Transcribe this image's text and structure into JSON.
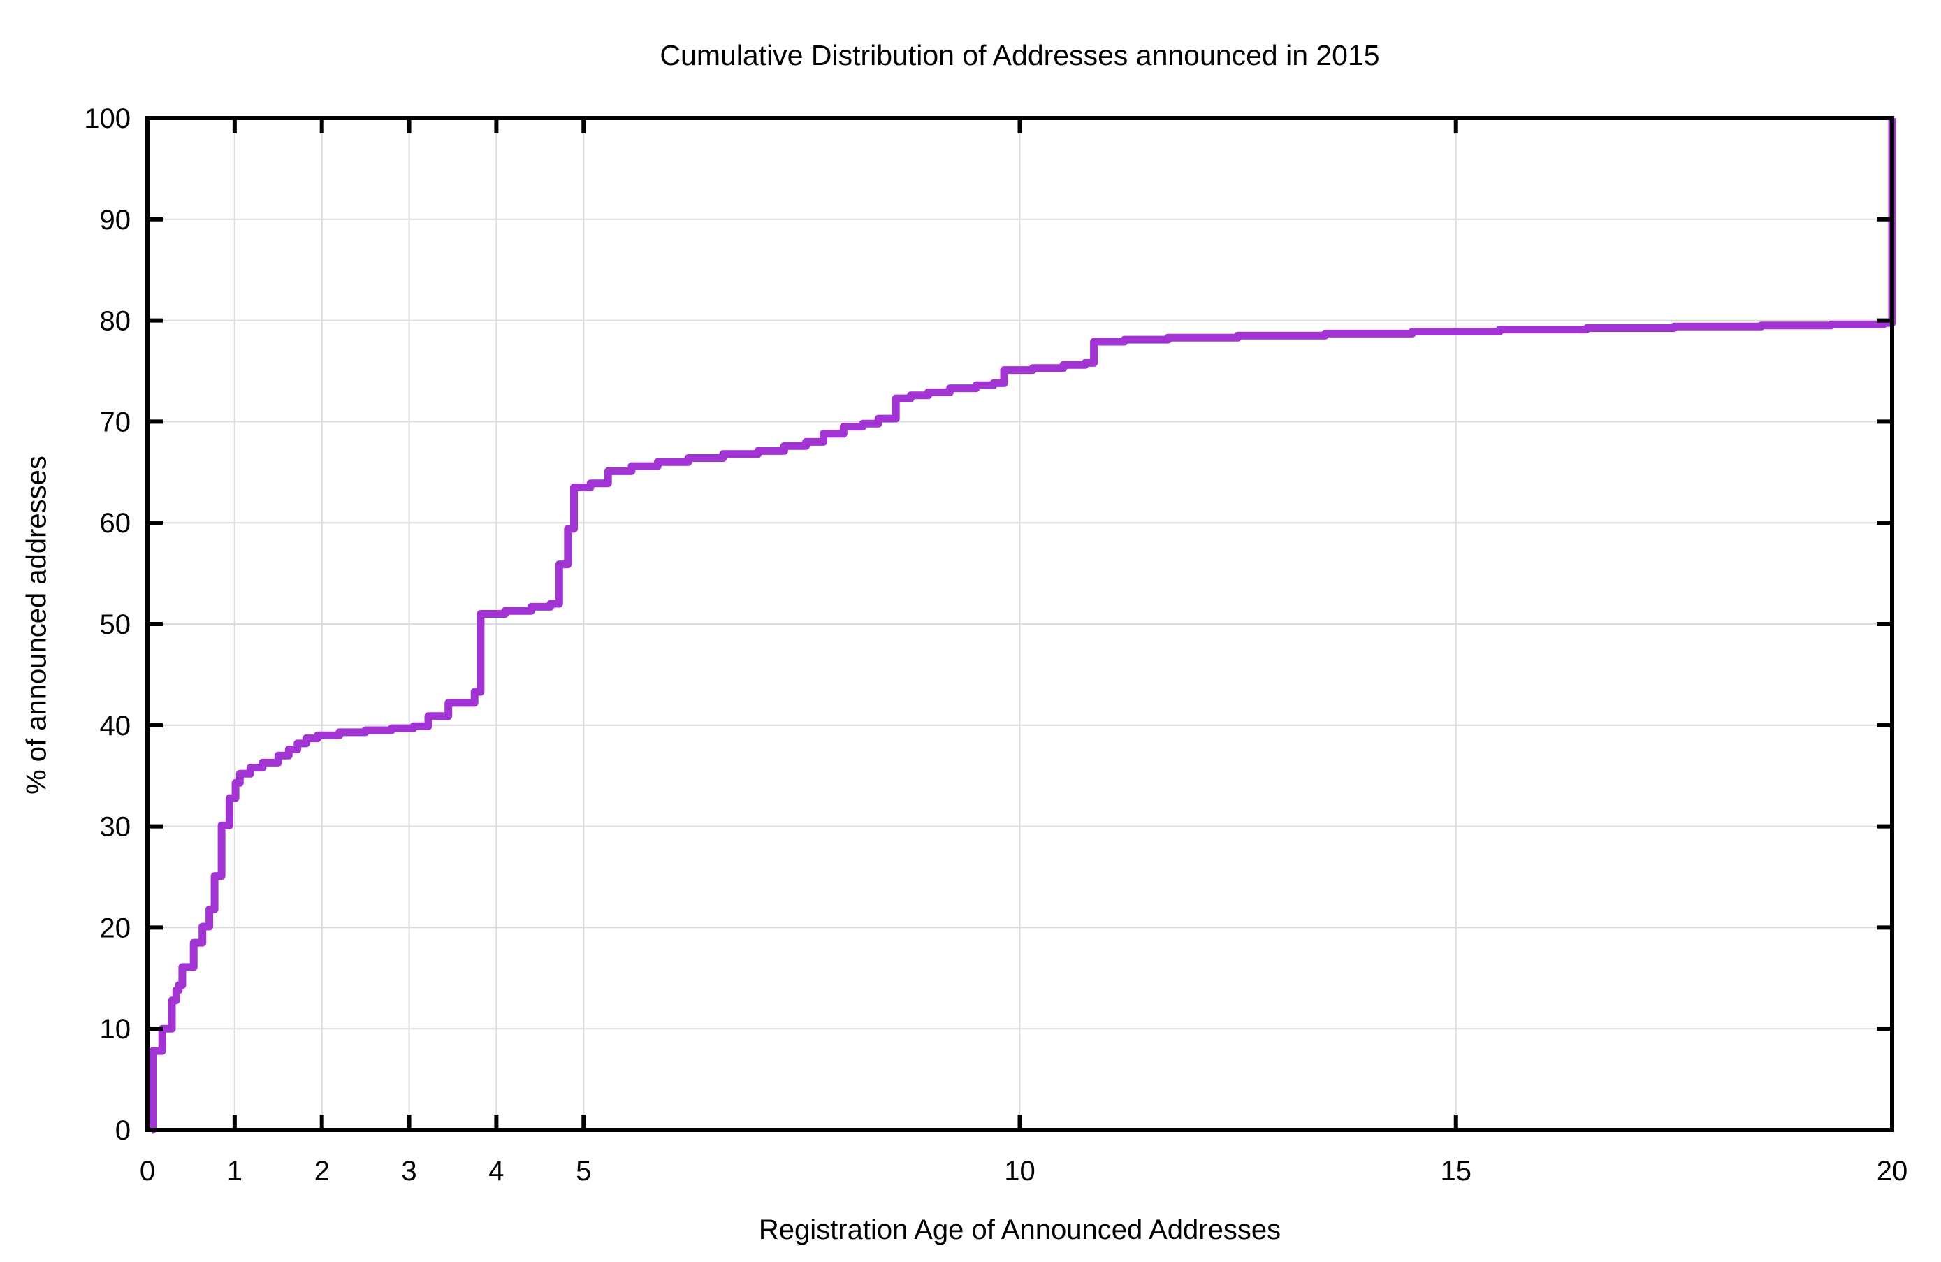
{
  "chart_data": {
    "type": "line",
    "subtype": "cdf-step",
    "title": "Cumulative Distribution of Addresses announced in 2015",
    "xlabel": "Registration Age of Announced Addresses",
    "ylabel": "% of announced addresses",
    "xlim": [
      0,
      20
    ],
    "ylim": [
      0,
      100
    ],
    "grid": true,
    "legend": "none",
    "x_ticks": [
      0,
      1,
      2,
      3,
      4,
      5,
      10,
      15,
      20
    ],
    "x_tick_labels": [
      "0",
      "1",
      "2",
      "3",
      "4",
      "5",
      "10",
      "15",
      "20"
    ],
    "y_ticks": [
      0,
      10,
      20,
      30,
      40,
      50,
      60,
      70,
      80,
      90,
      100
    ],
    "y_tick_labels": [
      "0",
      "10",
      "20",
      "30",
      "40",
      "50",
      "60",
      "70",
      "80",
      "90",
      "100"
    ],
    "line_color": "#a234d4",
    "line_width": 11,
    "axis_color": "#000000",
    "grid_color": "#dcdcdc",
    "background_color": "#ffffff",
    "points": [
      [
        0.05,
        0.0
      ],
      [
        0.06,
        7.8
      ],
      [
        0.17,
        10.0
      ],
      [
        0.28,
        12.8
      ],
      [
        0.33,
        13.8
      ],
      [
        0.36,
        14.3
      ],
      [
        0.4,
        16.1
      ],
      [
        0.53,
        18.5
      ],
      [
        0.63,
        20.1
      ],
      [
        0.71,
        21.8
      ],
      [
        0.77,
        25.1
      ],
      [
        0.85,
        30.1
      ],
      [
        0.94,
        32.8
      ],
      [
        1.01,
        34.3
      ],
      [
        1.06,
        35.2
      ],
      [
        1.18,
        35.8
      ],
      [
        1.32,
        36.3
      ],
      [
        1.5,
        37.0
      ],
      [
        1.62,
        37.6
      ],
      [
        1.72,
        38.2
      ],
      [
        1.82,
        38.7
      ],
      [
        1.95,
        39.0
      ],
      [
        2.2,
        39.3
      ],
      [
        2.5,
        39.5
      ],
      [
        2.8,
        39.7
      ],
      [
        3.05,
        39.9
      ],
      [
        3.22,
        40.9
      ],
      [
        3.45,
        42.2
      ],
      [
        3.75,
        43.3
      ],
      [
        3.82,
        51.0
      ],
      [
        4.1,
        51.3
      ],
      [
        4.4,
        51.7
      ],
      [
        4.62,
        52.0
      ],
      [
        4.72,
        55.9
      ],
      [
        4.82,
        59.4
      ],
      [
        4.89,
        63.5
      ],
      [
        5.08,
        63.9
      ],
      [
        5.28,
        65.1
      ],
      [
        5.55,
        65.6
      ],
      [
        5.85,
        66.0
      ],
      [
        6.2,
        66.4
      ],
      [
        6.6,
        66.8
      ],
      [
        7.0,
        67.1
      ],
      [
        7.3,
        67.6
      ],
      [
        7.55,
        68.0
      ],
      [
        7.75,
        68.8
      ],
      [
        7.98,
        69.5
      ],
      [
        8.2,
        69.8
      ],
      [
        8.38,
        70.3
      ],
      [
        8.58,
        72.3
      ],
      [
        8.75,
        72.6
      ],
      [
        8.95,
        72.9
      ],
      [
        9.2,
        73.3
      ],
      [
        9.5,
        73.6
      ],
      [
        9.7,
        73.8
      ],
      [
        9.82,
        75.1
      ],
      [
        10.15,
        75.3
      ],
      [
        10.5,
        75.6
      ],
      [
        10.75,
        75.8
      ],
      [
        10.85,
        77.9
      ],
      [
        11.2,
        78.1
      ],
      [
        11.7,
        78.3
      ],
      [
        12.5,
        78.5
      ],
      [
        13.5,
        78.7
      ],
      [
        14.5,
        78.9
      ],
      [
        15.5,
        79.1
      ],
      [
        16.5,
        79.25
      ],
      [
        17.5,
        79.4
      ],
      [
        18.5,
        79.5
      ],
      [
        19.3,
        79.6
      ],
      [
        19.9,
        79.75
      ],
      [
        20.0,
        100.0
      ]
    ]
  }
}
